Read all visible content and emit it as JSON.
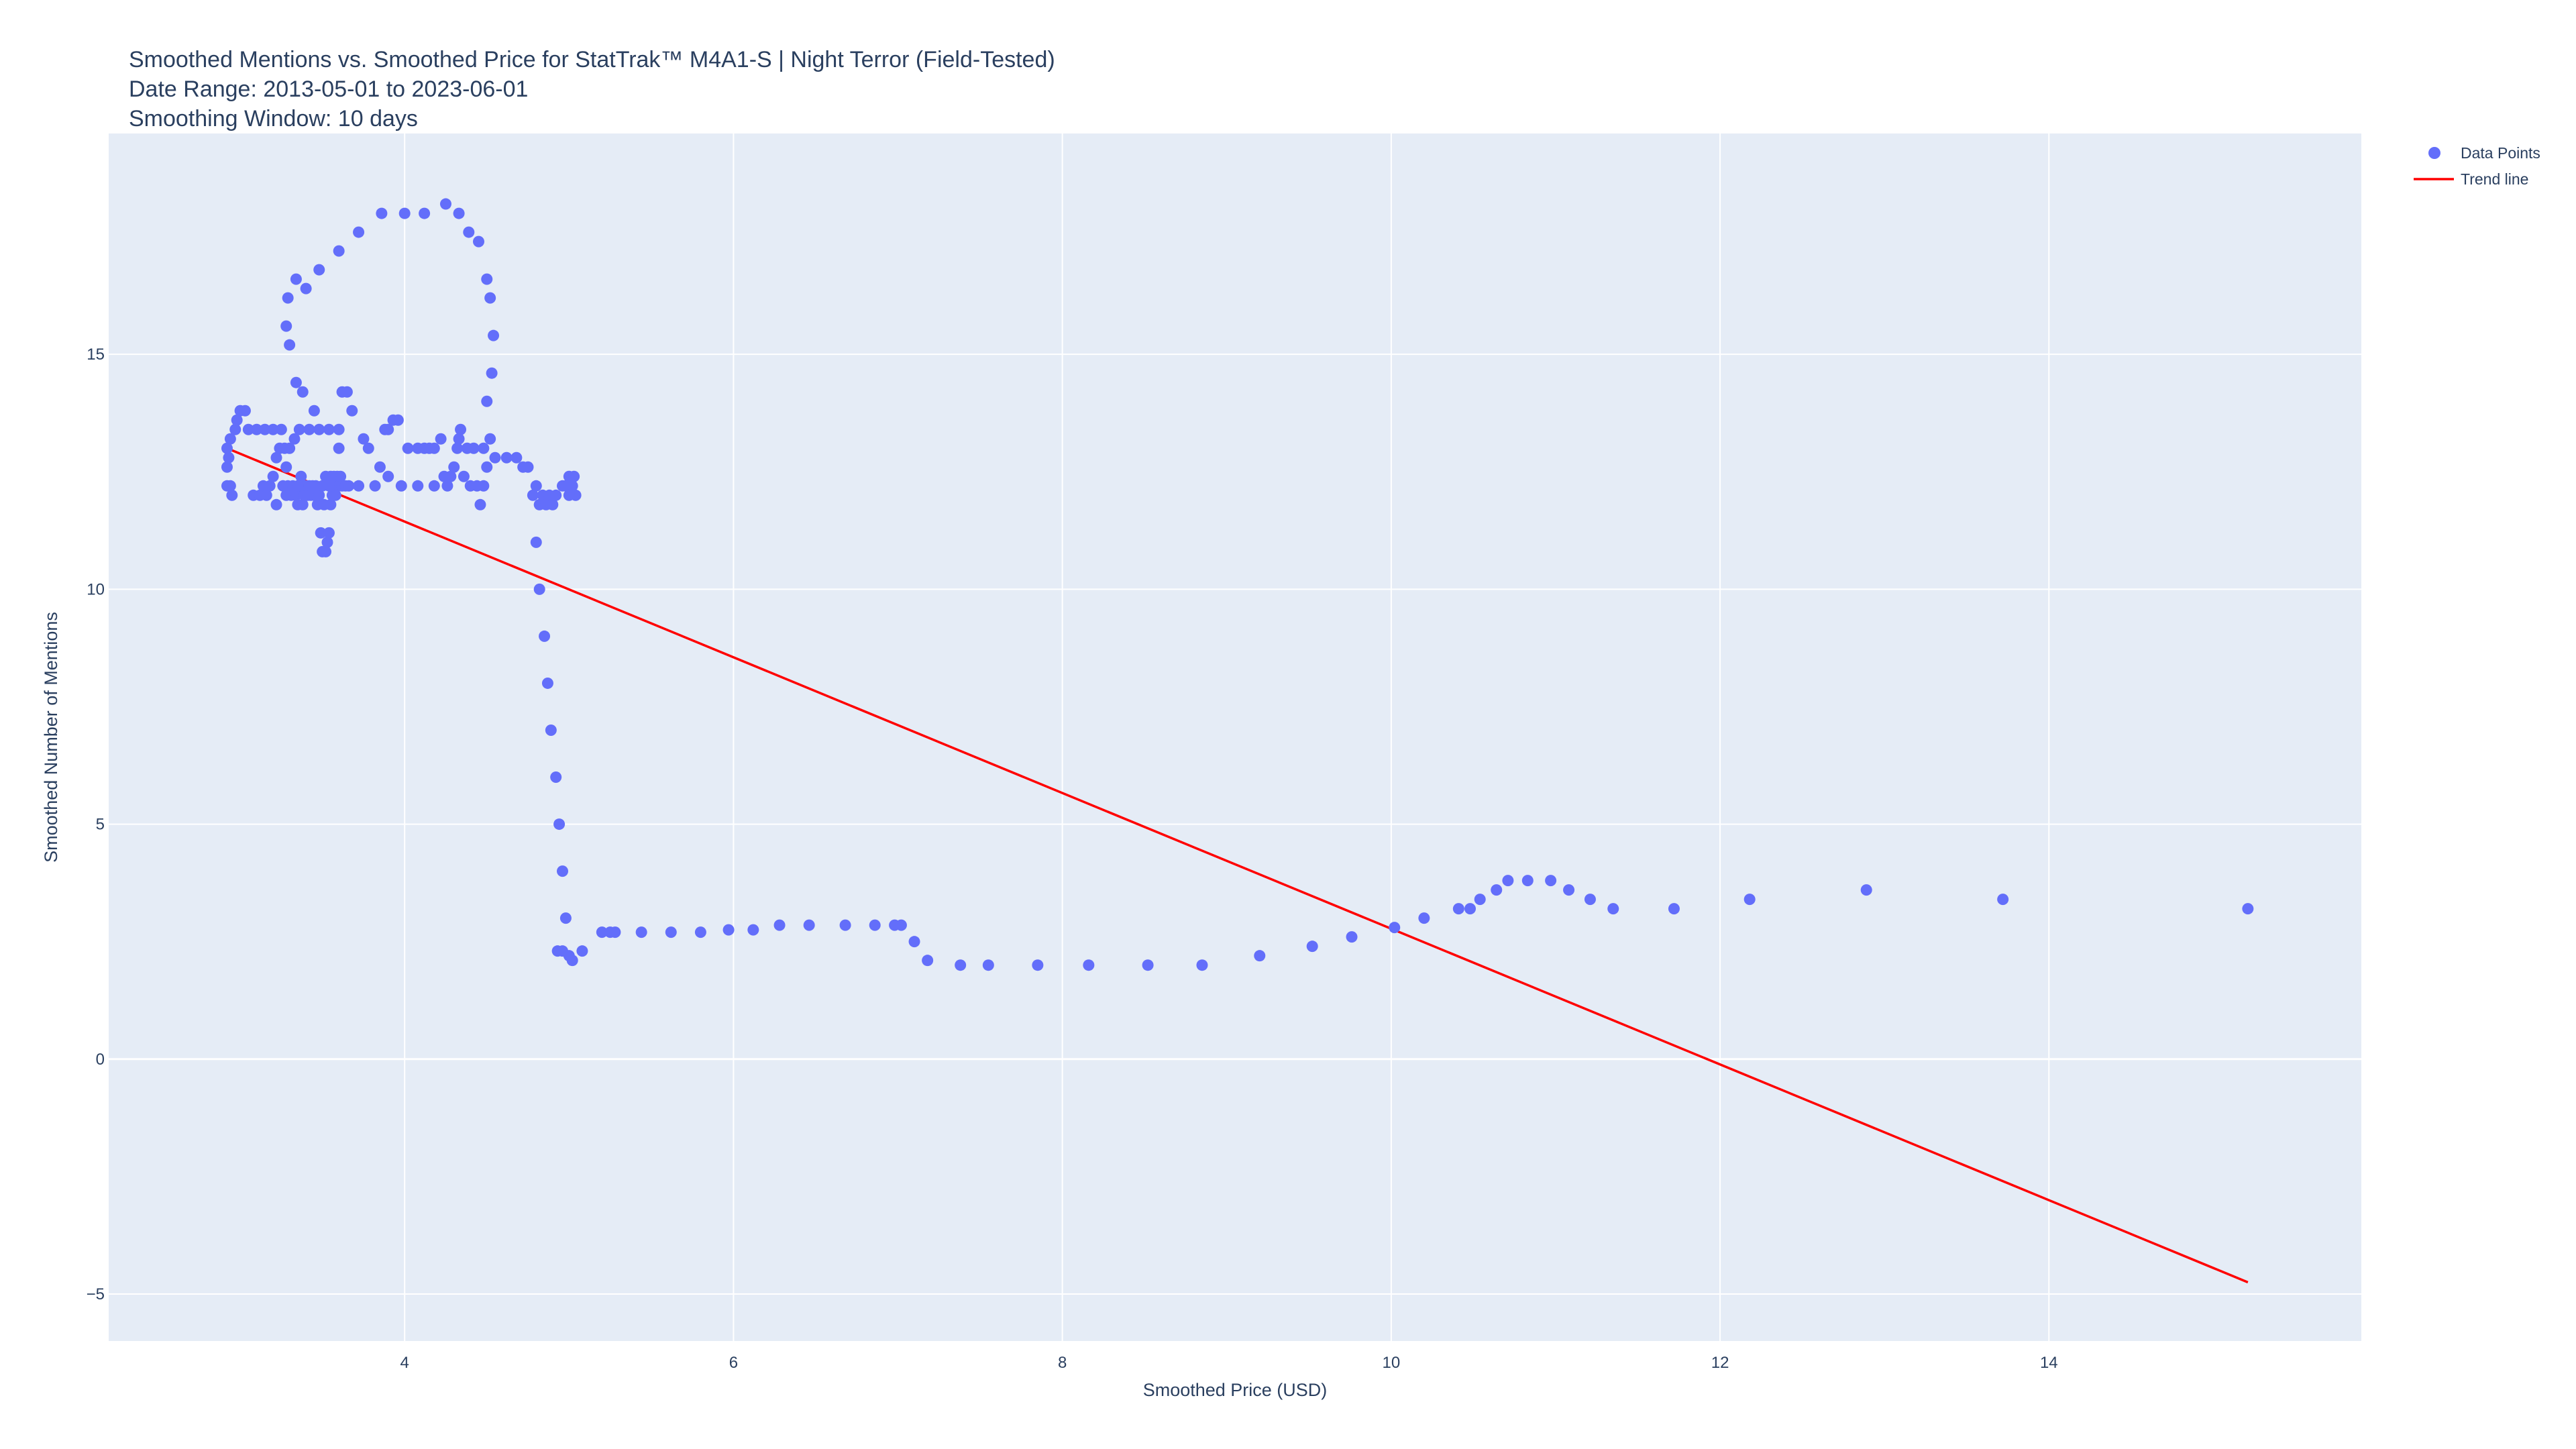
{
  "chart_data": {
    "type": "scatter",
    "title": {
      "line1": "Smoothed Mentions vs. Smoothed Price for StatTrak™ M4A1-S | Night Terror (Field-Tested)",
      "line2": "Date Range: 2013-05-01 to 2023-06-01",
      "line3": "Smoothing Window: 10 days"
    },
    "xlabel": "Smoothed Price (USD)",
    "ylabel": "Smoothed Number of Mentions",
    "xlim": [
      2.2,
      15.9
    ],
    "ylim": [
      -6.0,
      19.7
    ],
    "x_ticks": [
      4,
      6,
      8,
      10,
      12,
      14
    ],
    "x_tick_labels": [
      "4",
      "6",
      "8",
      "10",
      "12",
      "14"
    ],
    "y_ticks": [
      -5,
      0,
      5,
      10,
      15
    ],
    "y_tick_labels": [
      "−5",
      "0",
      "5",
      "10",
      "15"
    ],
    "grid": true,
    "legend_position": "top-right",
    "colors": {
      "plot_background": "#E5ECF6",
      "grid": "#ffffff",
      "points": "#636EFA",
      "trend": "#FF0000",
      "text": "#2a3f5f"
    },
    "series": [
      {
        "name": "Data Points",
        "mode": "markers",
        "points": [
          [
            2.92,
            12.2
          ],
          [
            2.94,
            12.2
          ],
          [
            2.95,
            12.0
          ],
          [
            2.92,
            12.6
          ],
          [
            2.93,
            12.8
          ],
          [
            2.92,
            13.0
          ],
          [
            2.94,
            13.2
          ],
          [
            2.97,
            13.4
          ],
          [
            2.98,
            13.6
          ],
          [
            3.0,
            13.8
          ],
          [
            3.03,
            13.8
          ],
          [
            3.05,
            13.4
          ],
          [
            3.1,
            13.4
          ],
          [
            3.15,
            13.4
          ],
          [
            3.2,
            13.4
          ],
          [
            3.25,
            13.4
          ],
          [
            3.08,
            12.0
          ],
          [
            3.12,
            12.0
          ],
          [
            3.14,
            12.2
          ],
          [
            3.16,
            12.0
          ],
          [
            3.18,
            12.2
          ],
          [
            3.2,
            12.4
          ],
          [
            3.22,
            11.8
          ],
          [
            3.22,
            12.8
          ],
          [
            3.24,
            13.0
          ],
          [
            3.26,
            12.2
          ],
          [
            3.27,
            13.0
          ],
          [
            3.28,
            12.6
          ],
          [
            3.28,
            12.0
          ],
          [
            3.29,
            12.2
          ],
          [
            3.3,
            13.0
          ],
          [
            3.31,
            12.0
          ],
          [
            3.32,
            12.2
          ],
          [
            3.33,
            13.2
          ],
          [
            3.34,
            12.0
          ],
          [
            3.35,
            11.8
          ],
          [
            3.36,
            12.2
          ],
          [
            3.37,
            12.4
          ],
          [
            3.38,
            11.8
          ],
          [
            3.39,
            12.0
          ],
          [
            3.4,
            12.2
          ],
          [
            3.41,
            12.0
          ],
          [
            3.42,
            12.2
          ],
          [
            3.43,
            12.0
          ],
          [
            3.44,
            12.2
          ],
          [
            3.45,
            12.0
          ],
          [
            3.46,
            12.2
          ],
          [
            3.47,
            11.8
          ],
          [
            3.48,
            12.0
          ],
          [
            3.49,
            11.2
          ],
          [
            3.5,
            10.8
          ],
          [
            3.51,
            11.8
          ],
          [
            3.52,
            10.8
          ],
          [
            3.53,
            11.0
          ],
          [
            3.54,
            11.2
          ],
          [
            3.55,
            11.8
          ],
          [
            3.56,
            12.2
          ],
          [
            3.57,
            12.4
          ],
          [
            3.58,
            12.2
          ],
          [
            3.59,
            12.4
          ],
          [
            3.6,
            12.2
          ],
          [
            3.61,
            12.4
          ],
          [
            3.62,
            12.2
          ],
          [
            3.64,
            12.2
          ],
          [
            3.66,
            12.2
          ],
          [
            3.5,
            12.2
          ],
          [
            3.52,
            12.4
          ],
          [
            3.54,
            12.2
          ],
          [
            3.55,
            12.4
          ],
          [
            3.56,
            12.0
          ],
          [
            3.58,
            12.0
          ],
          [
            3.35,
            12.2
          ],
          [
            3.36,
            13.4
          ],
          [
            3.42,
            13.4
          ],
          [
            3.48,
            13.4
          ],
          [
            3.54,
            13.4
          ],
          [
            3.6,
            13.4
          ],
          [
            3.6,
            13.0
          ],
          [
            3.62,
            14.2
          ],
          [
            3.65,
            14.2
          ],
          [
            3.68,
            13.8
          ],
          [
            3.72,
            12.2
          ],
          [
            3.75,
            13.2
          ],
          [
            3.78,
            13.0
          ],
          [
            3.82,
            12.2
          ],
          [
            3.85,
            12.6
          ],
          [
            3.88,
            13.4
          ],
          [
            3.9,
            13.4
          ],
          [
            3.93,
            13.6
          ],
          [
            3.96,
            13.6
          ],
          [
            3.9,
            12.4
          ],
          [
            3.98,
            12.2
          ],
          [
            4.02,
            13.0
          ],
          [
            4.08,
            13.0
          ],
          [
            4.12,
            13.0
          ],
          [
            4.15,
            13.0
          ],
          [
            4.18,
            13.0
          ],
          [
            4.22,
            13.2
          ],
          [
            4.08,
            12.2
          ],
          [
            4.18,
            12.2
          ],
          [
            4.24,
            12.4
          ],
          [
            4.26,
            12.2
          ],
          [
            4.28,
            12.4
          ],
          [
            4.3,
            12.6
          ],
          [
            4.32,
            13.0
          ],
          [
            4.33,
            13.2
          ],
          [
            4.34,
            13.4
          ],
          [
            4.36,
            12.4
          ],
          [
            4.38,
            13.0
          ],
          [
            4.4,
            12.2
          ],
          [
            4.42,
            13.0
          ],
          [
            4.44,
            12.2
          ],
          [
            4.46,
            11.8
          ],
          [
            4.48,
            12.2
          ],
          [
            4.48,
            13.0
          ],
          [
            4.5,
            12.6
          ],
          [
            4.52,
            13.2
          ],
          [
            4.55,
            12.8
          ],
          [
            4.62,
            12.8
          ],
          [
            4.68,
            12.8
          ],
          [
            4.72,
            12.6
          ],
          [
            4.75,
            12.6
          ],
          [
            4.78,
            12.0
          ],
          [
            4.8,
            12.2
          ],
          [
            4.82,
            11.8
          ],
          [
            4.84,
            12.0
          ],
          [
            4.86,
            11.8
          ],
          [
            4.88,
            12.0
          ],
          [
            4.9,
            11.8
          ],
          [
            4.92,
            12.0
          ],
          [
            4.96,
            12.2
          ],
          [
            4.98,
            12.2
          ],
          [
            5.0,
            12.4
          ],
          [
            5.02,
            12.2
          ],
          [
            5.03,
            12.4
          ],
          [
            5.04,
            12.0
          ],
          [
            5.0,
            12.0
          ],
          [
            3.28,
            15.6
          ],
          [
            3.3,
            15.2
          ],
          [
            3.29,
            16.2
          ],
          [
            3.34,
            16.6
          ],
          [
            3.4,
            16.4
          ],
          [
            3.48,
            16.8
          ],
          [
            3.6,
            17.2
          ],
          [
            3.72,
            17.6
          ],
          [
            3.86,
            18.0
          ],
          [
            4.0,
            18.0
          ],
          [
            4.12,
            18.0
          ],
          [
            4.25,
            18.2
          ],
          [
            4.33,
            18.0
          ],
          [
            4.39,
            17.6
          ],
          [
            4.45,
            17.4
          ],
          [
            4.5,
            16.6
          ],
          [
            4.52,
            16.2
          ],
          [
            4.54,
            15.4
          ],
          [
            4.53,
            14.6
          ],
          [
            4.5,
            14.0
          ],
          [
            3.34,
            14.4
          ],
          [
            3.38,
            14.2
          ],
          [
            3.45,
            13.8
          ],
          [
            4.8,
            11.0
          ],
          [
            4.82,
            10.0
          ],
          [
            4.85,
            9.0
          ],
          [
            4.87,
            8.0
          ],
          [
            4.89,
            7.0
          ],
          [
            4.92,
            6.0
          ],
          [
            4.94,
            5.0
          ],
          [
            4.96,
            4.0
          ],
          [
            4.98,
            3.0
          ],
          [
            4.93,
            2.3
          ],
          [
            4.96,
            2.3
          ],
          [
            5.0,
            2.2
          ],
          [
            5.02,
            2.1
          ],
          [
            5.08,
            2.3
          ],
          [
            5.2,
            2.7
          ],
          [
            5.25,
            2.7
          ],
          [
            5.28,
            2.7
          ],
          [
            5.44,
            2.7
          ],
          [
            5.62,
            2.7
          ],
          [
            5.8,
            2.7
          ],
          [
            5.97,
            2.75
          ],
          [
            6.12,
            2.75
          ],
          [
            6.28,
            2.85
          ],
          [
            6.46,
            2.85
          ],
          [
            6.68,
            2.85
          ],
          [
            6.86,
            2.85
          ],
          [
            6.98,
            2.85
          ],
          [
            7.02,
            2.85
          ],
          [
            7.1,
            2.5
          ],
          [
            7.18,
            2.1
          ],
          [
            7.38,
            2.0
          ],
          [
            7.55,
            2.0
          ],
          [
            7.85,
            2.0
          ],
          [
            8.16,
            2.0
          ],
          [
            8.52,
            2.0
          ],
          [
            8.85,
            2.0
          ],
          [
            9.2,
            2.2
          ],
          [
            9.52,
            2.4
          ],
          [
            9.76,
            2.6
          ],
          [
            10.02,
            2.8
          ],
          [
            10.2,
            3.0
          ],
          [
            10.41,
            3.2
          ],
          [
            10.48,
            3.2
          ],
          [
            10.54,
            3.4
          ],
          [
            10.64,
            3.6
          ],
          [
            10.71,
            3.8
          ],
          [
            10.83,
            3.8
          ],
          [
            10.97,
            3.8
          ],
          [
            11.08,
            3.6
          ],
          [
            11.21,
            3.4
          ],
          [
            11.35,
            3.2
          ],
          [
            11.72,
            3.2
          ],
          [
            12.18,
            3.4
          ],
          [
            12.89,
            3.6
          ],
          [
            13.72,
            3.4
          ],
          [
            15.21,
            3.2
          ]
        ]
      },
      {
        "name": "Trend line",
        "mode": "lines",
        "points": [
          [
            2.92,
            13.0
          ],
          [
            15.21,
            -4.75
          ]
        ]
      }
    ]
  }
}
